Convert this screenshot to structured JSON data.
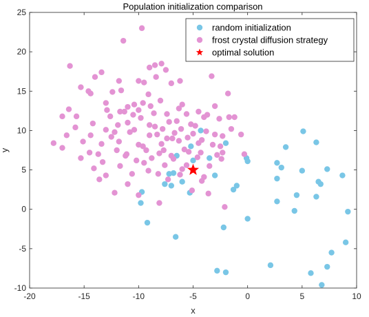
{
  "chart_data": {
    "type": "scatter",
    "title": "Population initialization comparison",
    "xlabel": "x",
    "ylabel": "y",
    "xlim": [
      -20,
      10
    ],
    "ylim": [
      -10,
      25
    ],
    "xticks": [
      -20,
      -15,
      -10,
      -5,
      0,
      5,
      10
    ],
    "yticks": [
      -10,
      -5,
      0,
      5,
      10,
      15,
      20,
      25
    ],
    "xtick_labels": [
      "-20",
      "-15",
      "-10",
      "-5",
      "0",
      "5",
      "10"
    ],
    "ytick_labels": [
      "-10",
      "-5",
      "0",
      "5",
      "10",
      "15",
      "20",
      "25"
    ],
    "grid": false,
    "legend_position": "top-right",
    "series": [
      {
        "name": "random initialization",
        "color": "#79c6e6",
        "marker": "circle",
        "points": [
          [
            -4.3,
            10.0
          ],
          [
            -3.5,
            6.5
          ],
          [
            -2.0,
            8.4
          ],
          [
            -3.0,
            4.3
          ],
          [
            -1.0,
            3.0
          ],
          [
            -1.3,
            2.5
          ],
          [
            -2.2,
            -2.3
          ],
          [
            -0.1,
            6.5
          ],
          [
            0.0,
            6.1
          ],
          [
            0.0,
            -1.2
          ],
          [
            2.7,
            5.9
          ],
          [
            3.1,
            5.3
          ],
          [
            2.7,
            3.9
          ],
          [
            2.7,
            1.0
          ],
          [
            3.5,
            7.9
          ],
          [
            5.1,
            9.9
          ],
          [
            5.0,
            4.9
          ],
          [
            4.5,
            1.8
          ],
          [
            4.3,
            -0.2
          ],
          [
            6.3,
            8.5
          ],
          [
            6.5,
            3.5
          ],
          [
            6.7,
            3.2
          ],
          [
            6.3,
            1.6
          ],
          [
            7.3,
            5.1
          ],
          [
            8.7,
            4.3
          ],
          [
            9.2,
            -0.3
          ],
          [
            9.0,
            -4.2
          ],
          [
            7.7,
            -5.5
          ],
          [
            7.3,
            -7.3
          ],
          [
            5.8,
            -8.1
          ],
          [
            6.8,
            -9.6
          ],
          [
            2.1,
            -7.1
          ],
          [
            -2.8,
            -7.8
          ],
          [
            -2.0,
            -8.0
          ],
          [
            -6.6,
            -3.5
          ],
          [
            -9.2,
            -1.7
          ],
          [
            -9.8,
            0.8
          ],
          [
            -9.7,
            2.2
          ],
          [
            -6.8,
            4.6
          ],
          [
            -7.2,
            4.5
          ],
          [
            -7.0,
            3.0
          ],
          [
            -6.0,
            3.5
          ],
          [
            -5.3,
            2.1
          ],
          [
            -5.0,
            6.2
          ],
          [
            -5.2,
            8.0
          ],
          [
            -6.5,
            6.8
          ],
          [
            -7.6,
            3.2
          ]
        ]
      },
      {
        "name": "frost crystal diffusion strategy",
        "color": "#e393d3",
        "marker": "circle",
        "points": [
          [
            -9.7,
            23.0
          ],
          [
            -11.4,
            21.4
          ],
          [
            -8.5,
            18.3
          ],
          [
            -9.0,
            18.0
          ],
          [
            -7.9,
            18.5
          ],
          [
            -7.5,
            17.7
          ],
          [
            -16.3,
            18.2
          ],
          [
            -13.4,
            17.4
          ],
          [
            -14.0,
            16.8
          ],
          [
            -10.0,
            16.3
          ],
          [
            -9.5,
            16.1
          ],
          [
            -8.4,
            16.8
          ],
          [
            -11.8,
            16.3
          ],
          [
            -7.0,
            16.0
          ],
          [
            -6.2,
            16.3
          ],
          [
            -3.3,
            16.9
          ],
          [
            -15.3,
            15.5
          ],
          [
            -14.4,
            14.7
          ],
          [
            -14.6,
            15.0
          ],
          [
            -12.4,
            14.9
          ],
          [
            -9.1,
            14.6
          ],
          [
            -11.6,
            15.1
          ],
          [
            -13.0,
            13.5
          ],
          [
            -16.4,
            12.7
          ],
          [
            -15.7,
            11.8
          ],
          [
            -11.0,
            13.0
          ],
          [
            -10.4,
            13.3
          ],
          [
            -9.6,
            13.5
          ],
          [
            -8.0,
            13.8
          ],
          [
            -6.0,
            13.3
          ],
          [
            -1.8,
            14.7
          ],
          [
            -11.7,
            12.4
          ],
          [
            -11.3,
            12.4
          ],
          [
            -12.6,
            11.8
          ],
          [
            -10.0,
            12.6
          ],
          [
            -8.6,
            12.2
          ],
          [
            -7.4,
            12.1
          ],
          [
            -6.3,
            12.8
          ],
          [
            -5.6,
            12.1
          ],
          [
            -4.5,
            12.4
          ],
          [
            -3.7,
            12.0
          ],
          [
            -3.0,
            13.1
          ],
          [
            -17.0,
            11.8
          ],
          [
            -15.8,
            10.4
          ],
          [
            -14.2,
            10.9
          ],
          [
            -13.0,
            10.1
          ],
          [
            -11.0,
            11.0
          ],
          [
            -9.0,
            10.7
          ],
          [
            -8.5,
            10.5
          ],
          [
            -7.2,
            11.1
          ],
          [
            -6.5,
            11.2
          ],
          [
            -5.2,
            10.8
          ],
          [
            -4.0,
            11.7
          ],
          [
            -2.6,
            11.5
          ],
          [
            -1.7,
            11.7
          ],
          [
            -1.2,
            11.7
          ],
          [
            -16.6,
            9.4
          ],
          [
            -14.4,
            9.4
          ],
          [
            -12.2,
            9.8
          ],
          [
            -10.4,
            10.1
          ],
          [
            -9.0,
            9.4
          ],
          [
            -6.7,
            9.7
          ],
          [
            -5.0,
            9.6
          ],
          [
            -3.0,
            9.5
          ],
          [
            -2.3,
            9.3
          ],
          [
            -0.6,
            9.5
          ],
          [
            -17.8,
            8.4
          ],
          [
            -15.1,
            8.6
          ],
          [
            -13.4,
            8.3
          ],
          [
            -11.8,
            8.6
          ],
          [
            -10.0,
            8.2
          ],
          [
            -7.9,
            8.3
          ],
          [
            -6.3,
            8.7
          ],
          [
            -4.5,
            8.4
          ],
          [
            -2.5,
            8.0
          ],
          [
            -17.0,
            7.8
          ],
          [
            -14.5,
            7.2
          ],
          [
            -12.0,
            7.5
          ],
          [
            -9.3,
            7.5
          ],
          [
            -7.7,
            7.5
          ],
          [
            -5.8,
            7.6
          ],
          [
            -4.3,
            7.2
          ],
          [
            -2.3,
            7.2
          ],
          [
            -0.3,
            7.0
          ],
          [
            -15.3,
            6.5
          ],
          [
            -13.3,
            6.0
          ],
          [
            -11.2,
            6.8
          ],
          [
            -8.8,
            6.5
          ],
          [
            -6.8,
            6.4
          ],
          [
            -4.6,
            6.6
          ],
          [
            -2.4,
            6.4
          ],
          [
            -14.1,
            5.2
          ],
          [
            -11.7,
            5.5
          ],
          [
            -9.5,
            5.9
          ],
          [
            -7.6,
            5.6
          ],
          [
            -5.6,
            5.6
          ],
          [
            -3.5,
            5.5
          ],
          [
            -13.0,
            4.3
          ],
          [
            -10.6,
            4.5
          ],
          [
            -8.2,
            4.5
          ],
          [
            -6.2,
            4.4
          ],
          [
            -4.0,
            4.1
          ],
          [
            -13.6,
            3.8
          ],
          [
            -11.0,
            3.2
          ],
          [
            -7.3,
            3.8
          ],
          [
            -4.2,
            3.6
          ],
          [
            -12.2,
            2.1
          ],
          [
            -10.0,
            1.8
          ],
          [
            -5.1,
            2.4
          ],
          [
            -3.6,
            2.0
          ],
          [
            -8.1,
            0.8
          ],
          [
            -2.1,
            0.3
          ],
          [
            -10.8,
            9.8
          ],
          [
            -9.8,
            11.6
          ],
          [
            -8.9,
            13.1
          ],
          [
            -7.8,
            10.2
          ],
          [
            -6.9,
            9.0
          ],
          [
            -5.5,
            9.1
          ],
          [
            -4.8,
            10.6
          ],
          [
            -3.8,
            9.9
          ],
          [
            -12.9,
            12.6
          ],
          [
            -11.1,
            7.0
          ],
          [
            -10.2,
            6.2
          ],
          [
            -8.1,
            7.1
          ],
          [
            -7.0,
            6.8
          ],
          [
            -5.4,
            7.3
          ],
          [
            -3.2,
            8.2
          ],
          [
            -2.8,
            6.9
          ],
          [
            -1.5,
            10.2
          ],
          [
            -12.5,
            9.2
          ],
          [
            -9.6,
            8.0
          ],
          [
            -8.3,
            9.5
          ],
          [
            -6.1,
            10.2
          ],
          [
            -4.2,
            8.8
          ],
          [
            -11.9,
            10.7
          ],
          [
            -10.5,
            12.0
          ],
          [
            -7.4,
            9.0
          ],
          [
            -13.7,
            7.0
          ],
          [
            -6.0,
            5.1
          ],
          [
            -9.1,
            4.9
          ]
        ]
      },
      {
        "name": "optimal solution",
        "color": "#ff0000",
        "marker": "star",
        "points": [
          [
            -5.0,
            5.0
          ]
        ]
      }
    ]
  }
}
